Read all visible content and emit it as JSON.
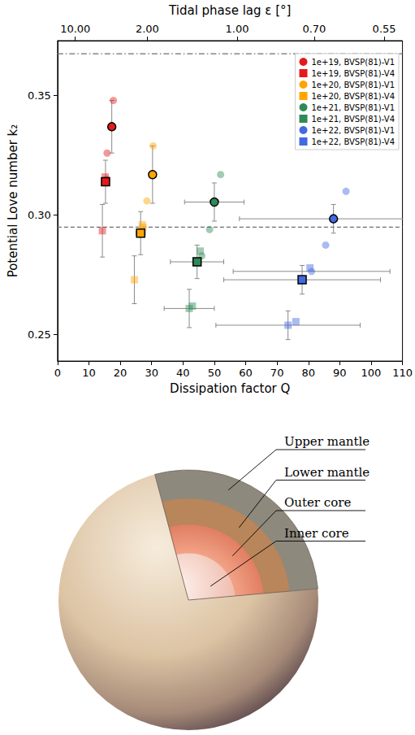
{
  "chart_data": {
    "type": "scatter",
    "xlabel": "Dissipation factor Q",
    "ylabel": "Potential Love number k₂",
    "x2label": "Tidal phase lag ε [°]",
    "xlim": [
      0,
      110
    ],
    "xticks": [
      0,
      10,
      20,
      30,
      40,
      50,
      60,
      70,
      80,
      90,
      100,
      110
    ],
    "x2ticks": [
      {
        "value": 5.671,
        "label": "10.00"
      },
      {
        "value": 28.636,
        "label": "2.00"
      },
      {
        "value": 57.29,
        "label": "1.00"
      },
      {
        "value": 81.85,
        "label": "0.70"
      },
      {
        "value": 104.17,
        "label": "0.55"
      }
    ],
    "ylim": [
      0.239,
      0.373
    ],
    "yticks": [
      0.25,
      {
        "value": 0.3,
        "label": "0.30"
      },
      0.35
    ],
    "grid": false,
    "legend": "upper right",
    "reference_lines": [
      {
        "value": 0.3675,
        "line_style": "dashdot"
      },
      {
        "value": 0.295,
        "line_style": "dashed"
      }
    ],
    "series": [
      {
        "name": "1e+19, BVSP(81)-V1",
        "color": "#e41a1c",
        "marker": "circle",
        "values": [
          [
            17.3,
            0.337
          ]
        ],
        "q_err": [
          null
        ],
        "k2_err": [
          0.011
        ],
        "other_values": [
          [
            17.8,
            0.348
          ],
          [
            15.8,
            0.326
          ],
          [
            15.7,
            0.315
          ]
        ],
        "other_q_err": [
          null,
          null,
          null
        ],
        "other_k2_err": [
          null,
          null,
          null
        ]
      },
      {
        "name": "1e+19, BVSP(81)-V4",
        "color": "#e41a1c",
        "marker": "square",
        "values": [
          [
            15.3,
            0.314
          ]
        ],
        "q_err": [
          null
        ],
        "k2_err": [
          0.009
        ],
        "other_values": [
          [
            15.2,
            0.316
          ],
          [
            14.3,
            0.2935
          ]
        ],
        "other_q_err": [
          null,
          null
        ],
        "other_k2_err": [
          null,
          0.011
        ]
      },
      {
        "name": "1e+20, BVSP(81)-V1",
        "color": "#ffa500",
        "marker": "circle",
        "values": [
          [
            30.3,
            0.317
          ]
        ],
        "q_err": [
          1.0
        ],
        "k2_err": [
          0.012
        ],
        "other_values": [
          [
            30.5,
            0.329
          ],
          [
            28.5,
            0.306
          ]
        ],
        "other_q_err": [
          null,
          null
        ],
        "other_k2_err": [
          null,
          null
        ]
      },
      {
        "name": "1e+20, BVSP(81)-V4",
        "color": "#ffa500",
        "marker": "square",
        "values": [
          [
            26.5,
            0.2925
          ]
        ],
        "q_err": [
          1.5
        ],
        "k2_err": [
          0.009
        ],
        "other_values": [
          [
            27.0,
            0.296
          ],
          [
            27.3,
            0.295
          ],
          [
            24.5,
            0.273
          ]
        ],
        "other_q_err": [
          null,
          null,
          null
        ],
        "other_k2_err": [
          null,
          null,
          0.01
        ]
      },
      {
        "name": "1e+21, BVSP(81)-V1",
        "color": "#2e8b57",
        "marker": "circle",
        "values": [
          [
            50.0,
            0.3055
          ]
        ],
        "q_err": [
          9.5
        ],
        "k2_err": [
          0.008
        ],
        "other_values": [
          [
            52.0,
            0.317
          ],
          [
            48.5,
            0.294
          ],
          [
            46.0,
            0.283
          ]
        ],
        "other_q_err": [
          null,
          null,
          null
        ],
        "other_k2_err": [
          null,
          null,
          null
        ]
      },
      {
        "name": "1e+21, BVSP(81)-V4",
        "color": "#2e8b57",
        "marker": "square",
        "values": [
          [
            44.5,
            0.2805
          ]
        ],
        "q_err": [
          8.5
        ],
        "k2_err": [
          0.007
        ],
        "other_values": [
          [
            45.5,
            0.285
          ],
          [
            43.0,
            0.262
          ],
          [
            42.0,
            0.261
          ]
        ],
        "other_q_err": [
          null,
          null,
          8.0
        ],
        "other_k2_err": [
          null,
          null,
          0.008
        ]
      },
      {
        "name": "1e+22, BVSP(81)-V1",
        "color": "#4169e1",
        "marker": "circle",
        "values": [
          [
            88.0,
            0.2985
          ]
        ],
        "q_err": [
          30.0
        ],
        "k2_err": [
          0.006
        ],
        "other_values": [
          [
            92.0,
            0.31
          ],
          [
            85.5,
            0.2875
          ],
          [
            81.0,
            0.2765
          ]
        ],
        "other_q_err": [
          null,
          null,
          25.0
        ],
        "other_k2_err": [
          null,
          null,
          null
        ]
      },
      {
        "name": "1e+22, BVSP(81)-V4",
        "color": "#4169e1",
        "marker": "square",
        "values": [
          [
            78.0,
            0.273
          ]
        ],
        "q_err": [
          25.0
        ],
        "k2_err": [
          0.006
        ],
        "other_values": [
          [
            80.5,
            0.278
          ],
          [
            76.0,
            0.2555
          ],
          [
            73.5,
            0.254
          ]
        ],
        "other_q_err": [
          null,
          null,
          23.0
        ],
        "other_k2_err": [
          null,
          null,
          0.006
        ]
      }
    ]
  },
  "diagram": {
    "labels": [
      "Upper mantle",
      "Lower mantle",
      "Outer core",
      "Inner core"
    ]
  }
}
